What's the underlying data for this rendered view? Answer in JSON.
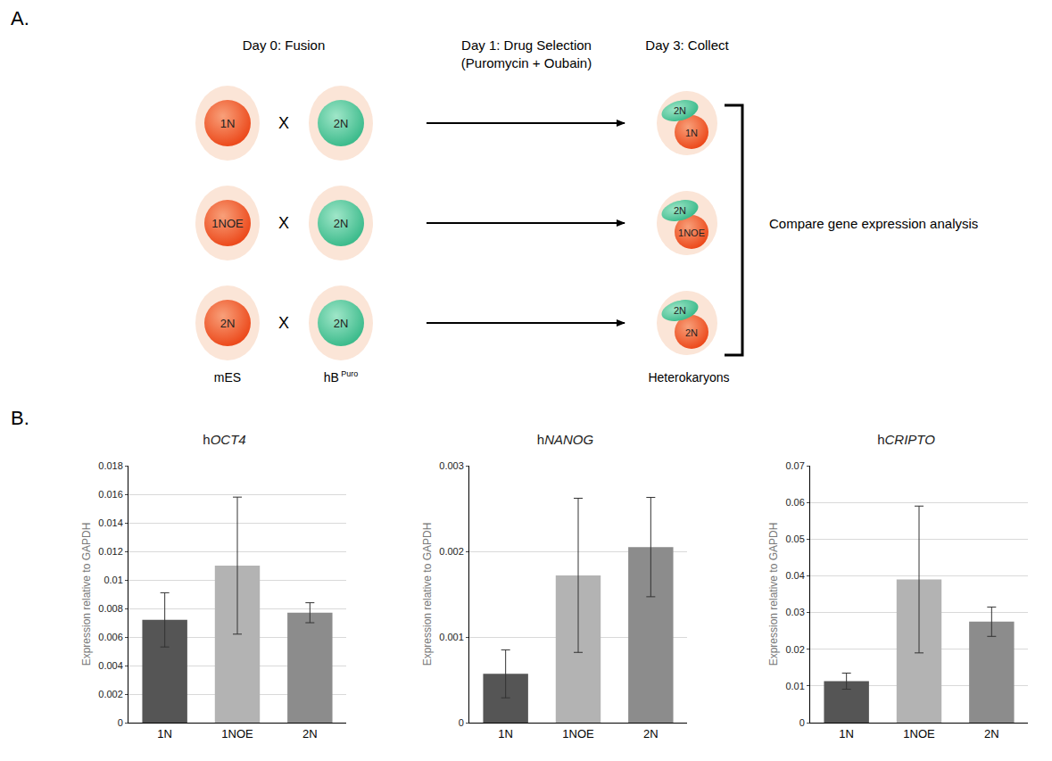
{
  "panel_labels": [
    "A.",
    "B."
  ],
  "diagram": {
    "steps": [
      {
        "text": "Day 0: Fusion"
      },
      {
        "text": "Day 1: Drug Selection",
        "subtext": "(Puromycin + Oubain)"
      },
      {
        "text": "Day 3: Collect"
      }
    ],
    "cross": "X",
    "rows": [
      {
        "mES": "1N",
        "hB": "2N",
        "heterokaryon": {
          "hB": "2N",
          "mES": "1N"
        }
      },
      {
        "mES": "1NOE",
        "hB": "2N",
        "heterokaryon": {
          "hB": "2N",
          "mES": "1NOE"
        }
      },
      {
        "mES": "2N",
        "hB": "2N",
        "heterokaryon": {
          "hB": "2N",
          "mES": "2N"
        }
      }
    ],
    "column_labels": {
      "mES": "mES",
      "hB": "hB",
      "hB_superscript": "Puro",
      "heterokaryon": "Heterokaryons"
    },
    "conclusion": "Compare gene expression analysis"
  },
  "chart_data": [
    {
      "type": "bar",
      "title": "hOCT4",
      "y_label": "Expression relative to GAPDH",
      "categories": [
        "1N",
        "1NOE",
        "2N"
      ],
      "values": [
        0.0072,
        0.011,
        0.0077
      ],
      "errors": [
        0.0019,
        0.0048,
        0.0007
      ],
      "colors": [
        "#555555",
        "#b3b3b3",
        "#8c8c8c"
      ],
      "ylim": [
        0,
        0.018
      ],
      "yticks": [
        0,
        0.002,
        0.004,
        0.006,
        0.008,
        0.01,
        0.012,
        0.014,
        0.016,
        0.018
      ],
      "grid": true
    },
    {
      "type": "bar",
      "title": "hNANOG",
      "y_label": "Expression relative to GAPDH",
      "categories": [
        "1N",
        "1NOE",
        "2N"
      ],
      "values": [
        0.00057,
        0.00172,
        0.00205
      ],
      "errors": [
        0.00028,
        0.0009,
        0.00058
      ],
      "colors": [
        "#555555",
        "#b3b3b3",
        "#8c8c8c"
      ],
      "ylim": [
        0,
        0.003
      ],
      "yticks": [
        0,
        0.001,
        0.002,
        0.003
      ],
      "grid": true
    },
    {
      "type": "bar",
      "title": "hCRIPTO",
      "y_label": "Expression relative to GAPDH",
      "categories": [
        "1N",
        "1NOE",
        "2N"
      ],
      "values": [
        0.0113,
        0.039,
        0.0275
      ],
      "errors": [
        0.0022,
        0.02,
        0.004
      ],
      "colors": [
        "#555555",
        "#b3b3b3",
        "#8c8c8c"
      ],
      "ylim": [
        0,
        0.07
      ],
      "yticks": [
        0,
        0.01,
        0.02,
        0.03,
        0.04,
        0.05,
        0.06,
        0.07
      ],
      "grid": true
    }
  ]
}
